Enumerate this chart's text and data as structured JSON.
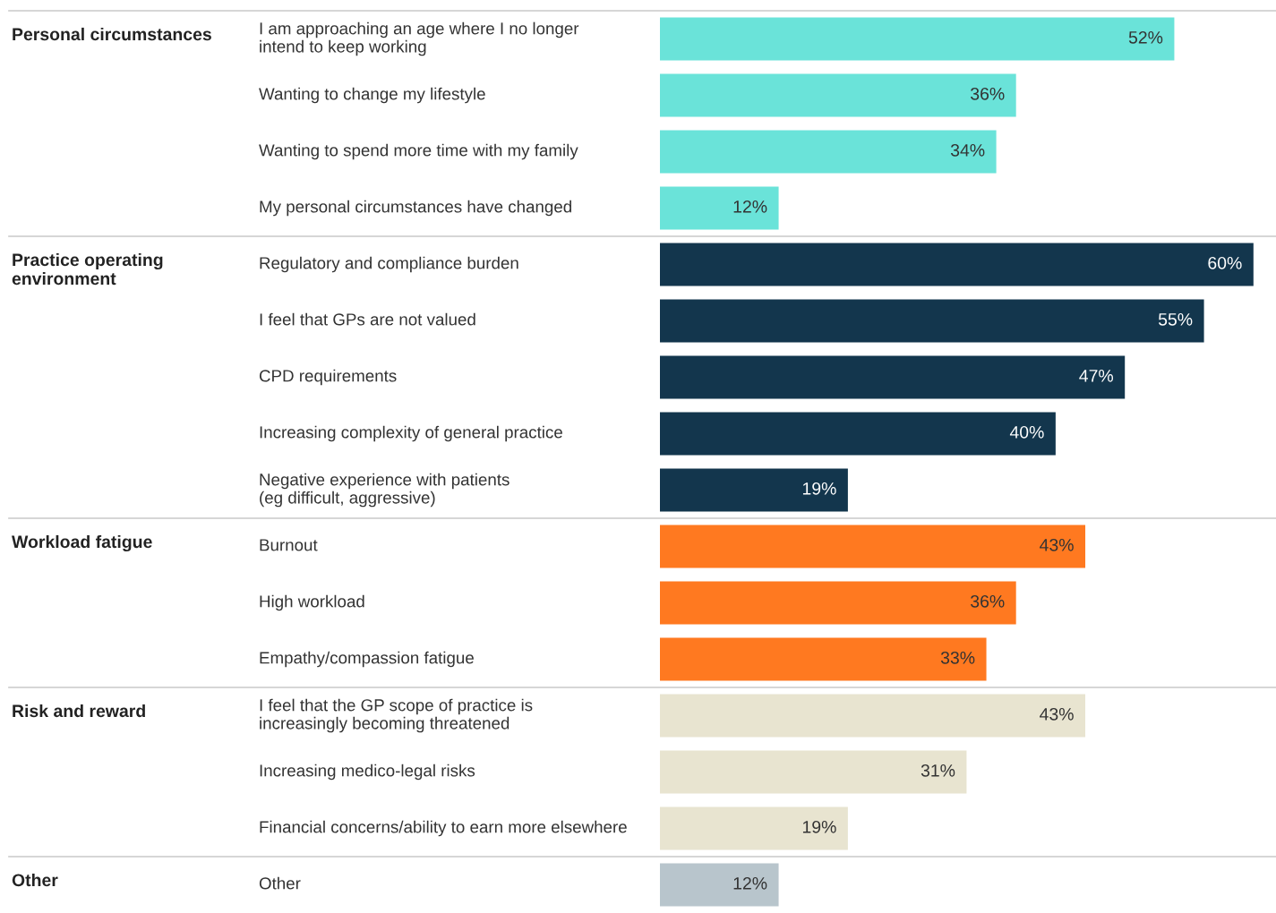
{
  "chart_data": {
    "type": "bar",
    "orientation": "horizontal",
    "categories": [
      "I am approaching an age where I no longer\nintend to keep working",
      "Wanting to change my lifestyle",
      "Wanting to spend more time with my family",
      "My personal circumstances have changed",
      "Regulatory and compliance burden",
      "I feel that GPs are not valued",
      "CPD requirements",
      "Increasing complexity of general practice",
      "Negative experience with patients\n(eg difficult, aggressive)",
      "Burnout",
      "High workload",
      "Empathy/compassion fatigue",
      "I feel that the GP scope of practice is\nincreasingly becoming threatened",
      "Increasing medico-legal risks",
      "Financial concerns/ability to earn more elsewhere",
      "Other"
    ],
    "values": [
      52,
      36,
      34,
      12,
      60,
      55,
      47,
      40,
      19,
      43,
      36,
      33,
      43,
      31,
      19,
      12
    ],
    "colors": [
      "#6ae3d9",
      "#6ae3d9",
      "#6ae3d9",
      "#6ae3d9",
      "#13364d",
      "#13364d",
      "#13364d",
      "#13364d",
      "#13364d",
      "#ff7920",
      "#ff7920",
      "#ff7920",
      "#e8e4d0",
      "#e8e4d0",
      "#e8e4d0",
      "#b8c5cc"
    ],
    "value_labels": [
      "52%",
      "36%",
      "34%",
      "12%",
      "60%",
      "55%",
      "47%",
      "40%",
      "19%",
      "43%",
      "36%",
      "33%",
      "43%",
      "31%",
      "19%",
      "12%"
    ],
    "annotations": [
      "Personal circumstances",
      "Practice operating\nenvironment",
      "Workload fatigue",
      "Risk and reward",
      "Other"
    ],
    "tick_labels": false
  }
}
